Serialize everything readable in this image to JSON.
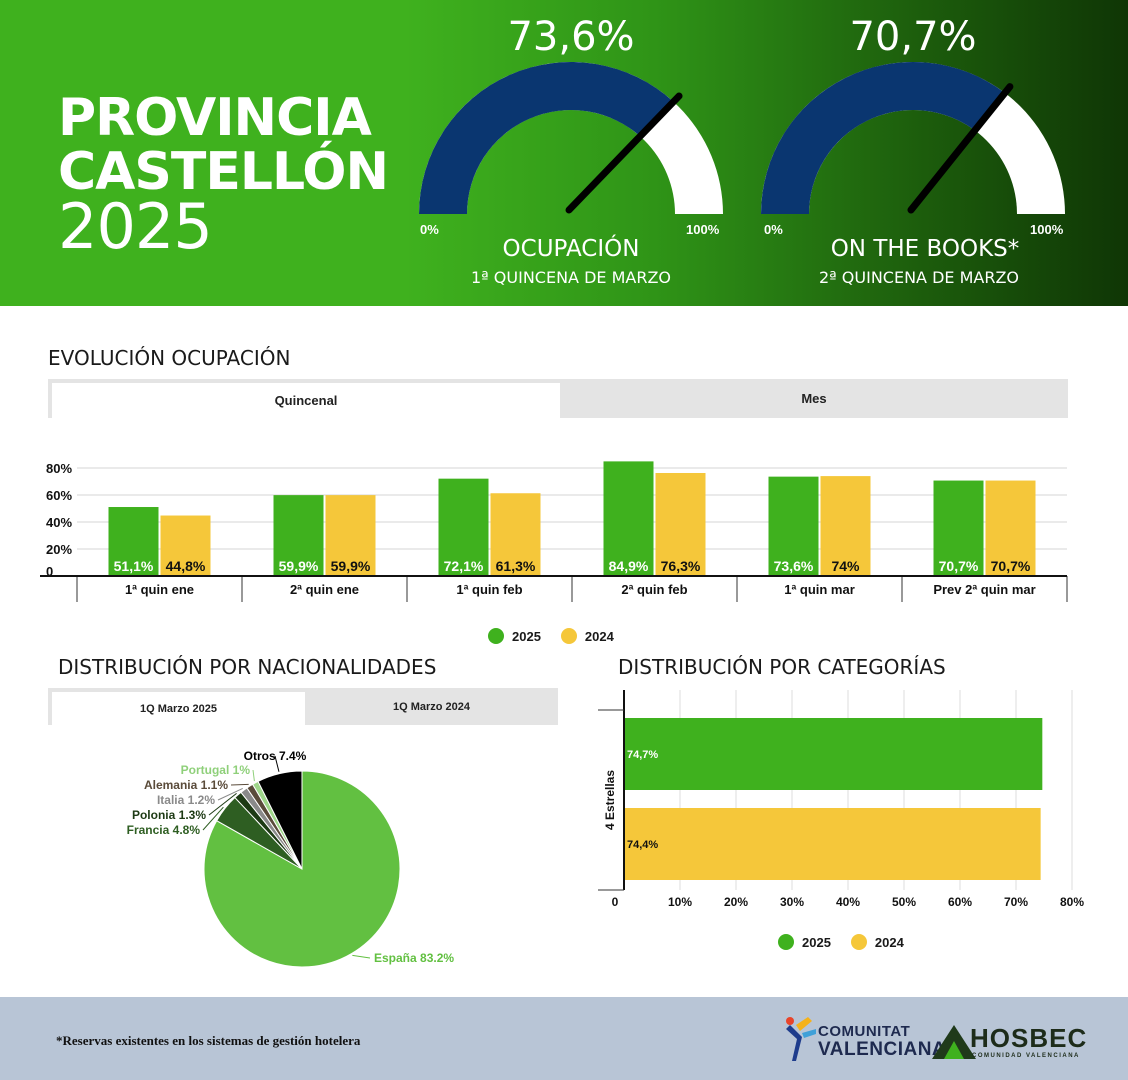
{
  "header": {
    "title_line1": "PROVINCIA",
    "title_line2": "CASTELLÓN",
    "title_line3": "2025",
    "gauges": [
      {
        "value_label": "73,6%",
        "value": 73.6,
        "min_label": "0%",
        "max_label": "100%",
        "label": "OCUPACIÓN",
        "sublabel": "1ª QUINCENA DE MARZO"
      },
      {
        "value_label": "70,7%",
        "value": 70.7,
        "min_label": "0%",
        "max_label": "100%",
        "label": "ON THE BOOKS*",
        "sublabel": "2ª QUINCENA DE MARZO"
      }
    ],
    "colors": {
      "gauge_fill": "#0a3670",
      "gauge_empty": "#ffffff",
      "needle": "#000000"
    }
  },
  "evolution": {
    "title": "EVOLUCIÓN OCUPACIÓN",
    "tabs": [
      {
        "label": "Quincenal",
        "active": true
      },
      {
        "label": "Mes",
        "active": false
      }
    ]
  },
  "nationalities": {
    "title": "DISTRIBUCIÓN POR NACIONALIDADES",
    "tabs": [
      {
        "label": "1Q Marzo 2025",
        "active": true
      },
      {
        "label": "1Q Marzo 2024",
        "active": false
      }
    ]
  },
  "categories": {
    "title": "DISTRIBUCIÓN POR CATEGORÍAS"
  },
  "chart_data": [
    {
      "type": "bar",
      "categories": [
        "1ª quin ene",
        "2ª quin ene",
        "1ª quin feb",
        "2ª quin feb",
        "1ª quin mar",
        "Prev 2ª quin mar"
      ],
      "series": [
        {
          "name": "2025",
          "color": "#3fb11e",
          "values": [
            51.1,
            59.9,
            72.1,
            84.9,
            73.6,
            70.7
          ],
          "labels": [
            "51,1%",
            "59,9%",
            "72,1%",
            "84,9%",
            "73,6%",
            "70,7%"
          ]
        },
        {
          "name": "2024",
          "color": "#f5c73a",
          "values": [
            44.8,
            59.9,
            61.3,
            76.3,
            74,
            70.7
          ],
          "labels": [
            "44,8%",
            "59,9%",
            "61,3%",
            "76,3%",
            "74%",
            "70,7%"
          ]
        }
      ],
      "y_ticks": [
        "0",
        "20%",
        "40%",
        "60%",
        "80%"
      ],
      "ylim": [
        0,
        80
      ],
      "grid": true,
      "legend": "bottom"
    },
    {
      "type": "pie",
      "slices": [
        {
          "name": "España",
          "value": 83.2,
          "label": "España 83.2%",
          "color": "#62c041",
          "label_color": "#62c041"
        },
        {
          "name": "Francia",
          "value": 4.8,
          "label": "Francia 4.8%",
          "color": "#2e5e22",
          "label_color": "#2e5e22"
        },
        {
          "name": "Polonia",
          "value": 1.3,
          "label": "Polonia 1.3%",
          "color": "#1d3a14",
          "label_color": "#1d3a14"
        },
        {
          "name": "Italia",
          "value": 1.2,
          "label": "Italia 1.2%",
          "color": "#8a8a8a",
          "label_color": "#8a8a8a"
        },
        {
          "name": "Alemania",
          "value": 1.1,
          "label": "Alemania 1.1%",
          "color": "#5a4b3a",
          "label_color": "#5a4b3a"
        },
        {
          "name": "Portugal",
          "value": 1.0,
          "label": "Portugal 1%",
          "color": "#9fd68a",
          "label_color": "#8fd07a"
        },
        {
          "name": "Otros",
          "value": 7.4,
          "label": "Otros 7.4%",
          "color": "#000000",
          "label_color": "#000000"
        }
      ]
    },
    {
      "type": "bar",
      "orientation": "horizontal",
      "categories": [
        "4 Estrellas"
      ],
      "series": [
        {
          "name": "2025",
          "color": "#3fb11e",
          "values": [
            74.7
          ],
          "labels": [
            "74,7%"
          ]
        },
        {
          "name": "2024",
          "color": "#f5c73a",
          "values": [
            74.4
          ],
          "labels": [
            "74,4%"
          ]
        }
      ],
      "x_ticks": [
        "0",
        "10%",
        "20%",
        "30%",
        "40%",
        "50%",
        "60%",
        "70%",
        "80%"
      ],
      "xlim": [
        0,
        80
      ],
      "grid": true,
      "legend": "bottom"
    }
  ],
  "legend_items": [
    {
      "label": "2025",
      "color": "#3fb11e"
    },
    {
      "label": "2024",
      "color": "#f5c73a"
    }
  ],
  "footer": {
    "footnote": "*Reservas existentes en los sistemas de gestión hotelera",
    "logo_cv_line1": "COMUNITAT",
    "logo_cv_line2": "VALENCIANA",
    "logo_hosbec": "HOSBEC",
    "logo_hosbec_sub": "COMUNIDAD VALENCIANA"
  }
}
